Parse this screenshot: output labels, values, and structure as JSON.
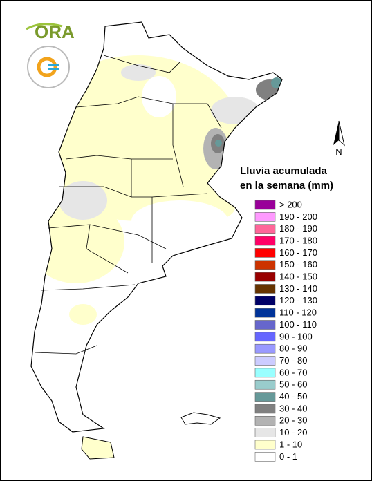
{
  "logo": {
    "text": "ORA"
  },
  "compass": "N",
  "legend": {
    "title": [
      "Lluvia acumulada",
      "en la semana (mm)"
    ],
    "items": [
      {
        "label": "> 200",
        "color": "#990099"
      },
      {
        "label": "190 - 200",
        "color": "#ff99ff"
      },
      {
        "label": "180 - 190",
        "color": "#ff6699"
      },
      {
        "label": "170 - 180",
        "color": "#ff0066"
      },
      {
        "label": "160 - 170",
        "color": "#ff0000"
      },
      {
        "label": "150 - 160",
        "color": "#cc3300"
      },
      {
        "label": "140 - 150",
        "color": "#990000"
      },
      {
        "label": "130 - 140",
        "color": "#663300"
      },
      {
        "label": "120 - 130",
        "color": "#000066"
      },
      {
        "label": "110 - 120",
        "color": "#003399"
      },
      {
        "label": "100 - 110",
        "color": "#6666cc"
      },
      {
        "label": "90 - 100",
        "color": "#6666ff"
      },
      {
        "label": "80 - 90",
        "color": "#9999ff"
      },
      {
        "label": "70 - 80",
        "color": "#ccccff"
      },
      {
        "label": "60 - 70",
        "color": "#99ffff"
      },
      {
        "label": "50 - 60",
        "color": "#99cccc"
      },
      {
        "label": "40 - 50",
        "color": "#669999"
      },
      {
        "label": "30 - 40",
        "color": "#808080"
      },
      {
        "label": "20 - 30",
        "color": "#b3b3b3"
      },
      {
        "label": "10 - 20",
        "color": "#e6e6e6"
      },
      {
        "label": "1 - 10",
        "color": "#ffffcc"
      },
      {
        "label": "0 - 1",
        "color": "#ffffff"
      }
    ]
  }
}
